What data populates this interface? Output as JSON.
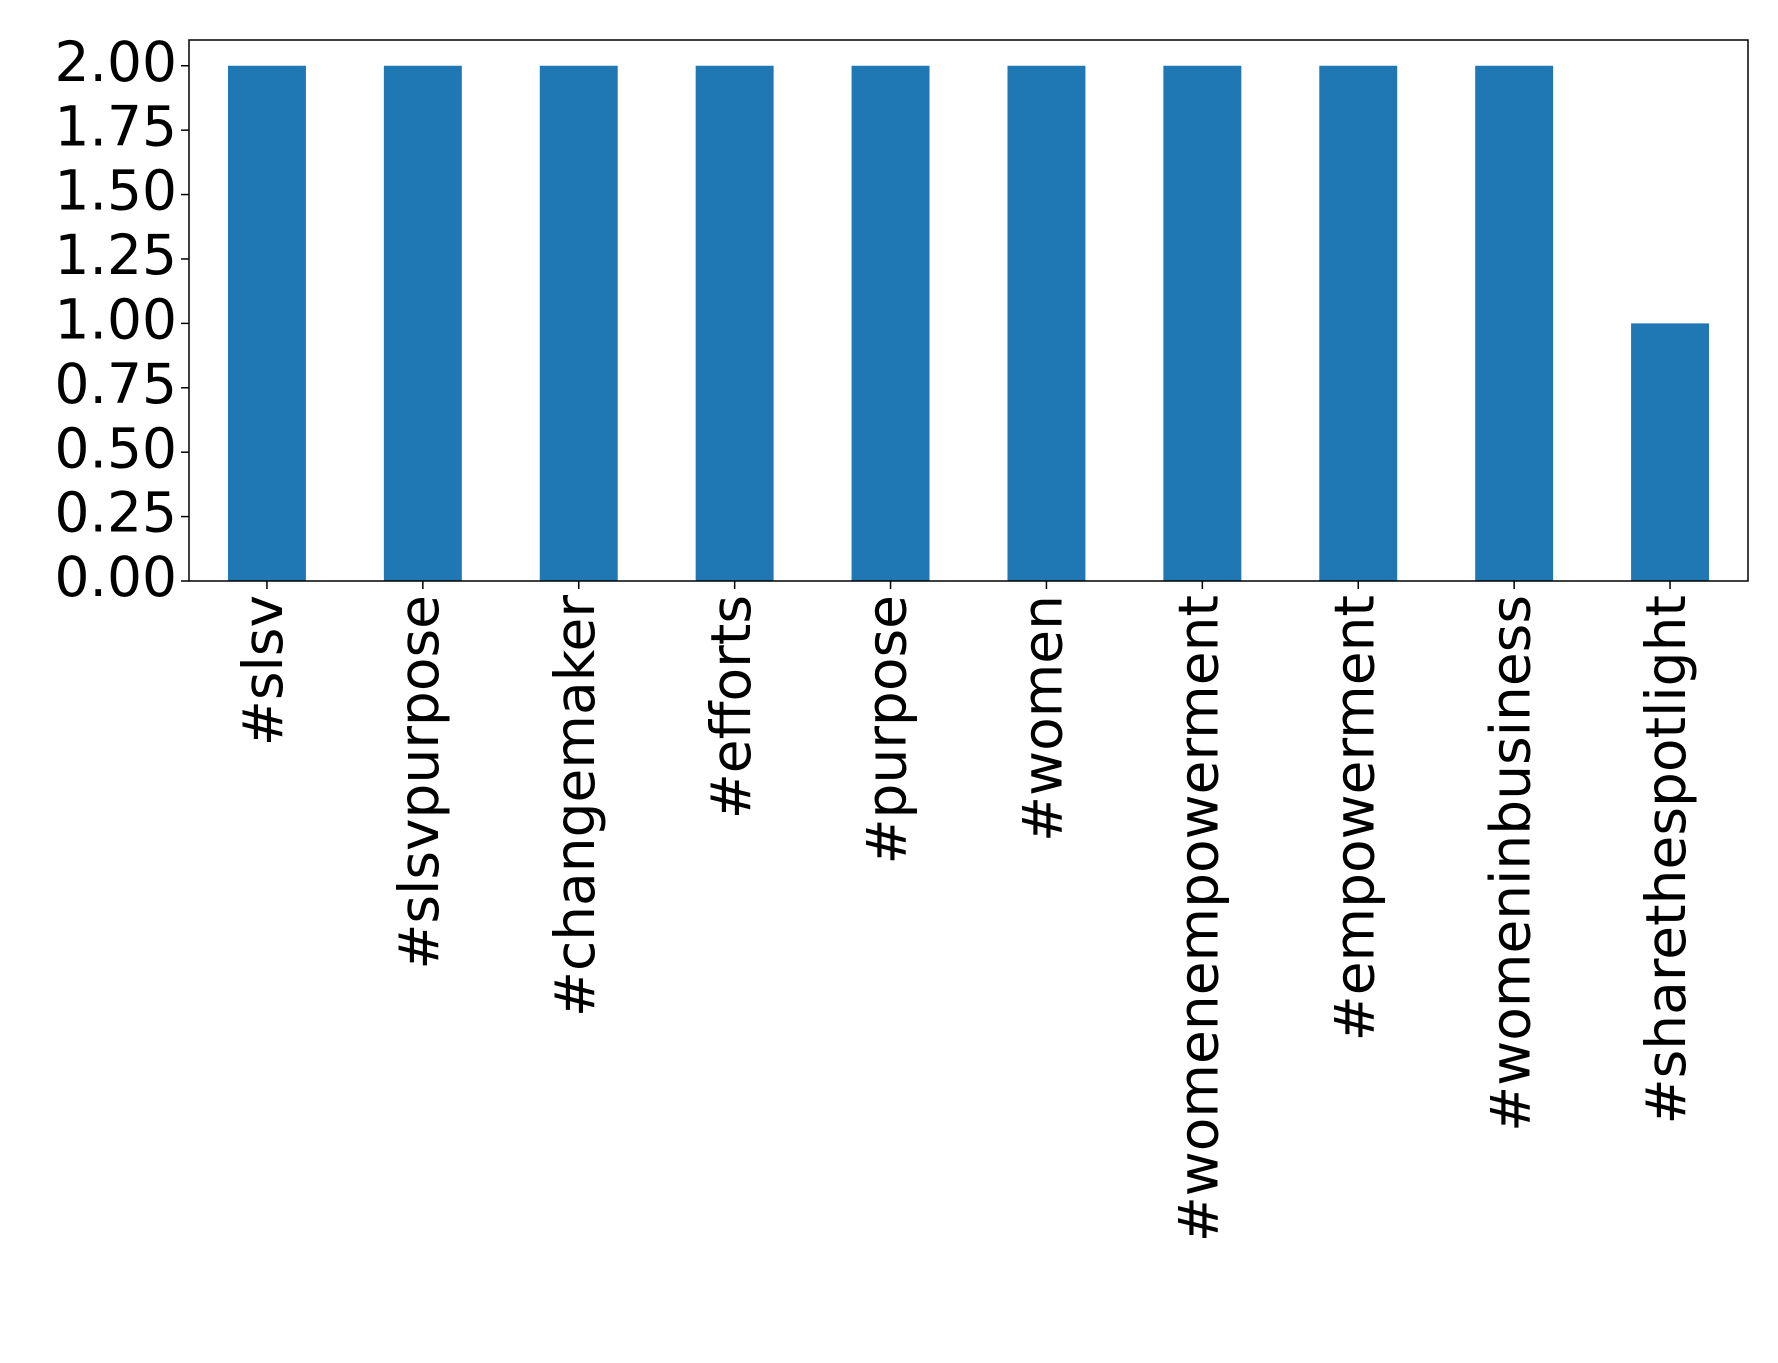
{
  "chart_data": {
    "type": "bar",
    "categories": [
      "#slsv",
      "#slsvpurpose",
      "#changemaker",
      "#efforts",
      "#purpose",
      "#women",
      "#womenempowerment",
      "#empowerment",
      "#womeninbusiness",
      "#sharethespotlight"
    ],
    "values": [
      2,
      2,
      2,
      2,
      2,
      2,
      2,
      2,
      2,
      1
    ],
    "color": "#1f77b4",
    "ylim": [
      0,
      2.1
    ],
    "yticks": [
      {
        "value": 0,
        "label": "0.00"
      },
      0.25,
      {
        "value": 0.5,
        "label": "0.50"
      },
      0.75,
      {
        "value": 1,
        "label": "1.00"
      },
      1.25,
      {
        "value": 1.5,
        "label": "1.50"
      },
      1.75,
      {
        "value": 2,
        "label": "2.00"
      }
    ]
  }
}
